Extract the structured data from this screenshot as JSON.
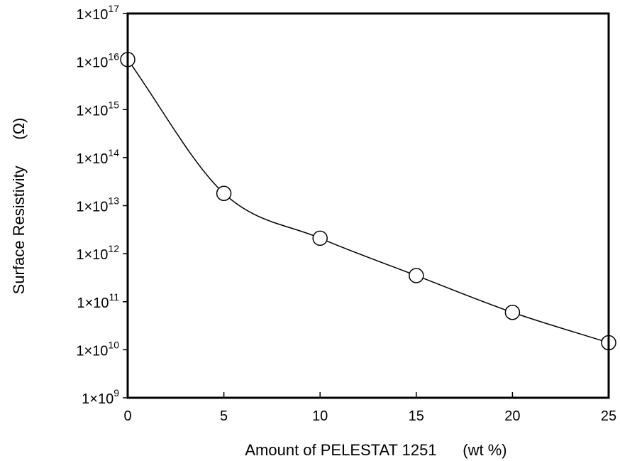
{
  "chart_data": {
    "type": "line",
    "xlabel": "Amount of PELESTAT 1251      (wt %)",
    "ylabel": "Surface Resistivity      (Ω)",
    "x_ticks": [
      "0",
      "5",
      "10",
      "15",
      "20",
      "25"
    ],
    "y_tick_exponents": [
      "9",
      "10",
      "11",
      "12",
      "13",
      "14",
      "15",
      "16",
      "17"
    ],
    "y_tick_base": "1×10",
    "xlim": [
      0,
      25
    ],
    "ylim": [
      1000000000.0,
      1e+17
    ],
    "y_scale": "log",
    "grid": false,
    "legend": "none",
    "series": [
      {
        "x": [
          0,
          5,
          10,
          15,
          20,
          25
        ],
        "y": [
          1.1e+16,
          18000000000000.0,
          2100000000000.0,
          350000000000.0,
          60000000000.0,
          14000000000.0
        ],
        "marker": "open-circle",
        "line": "smooth"
      }
    ]
  }
}
